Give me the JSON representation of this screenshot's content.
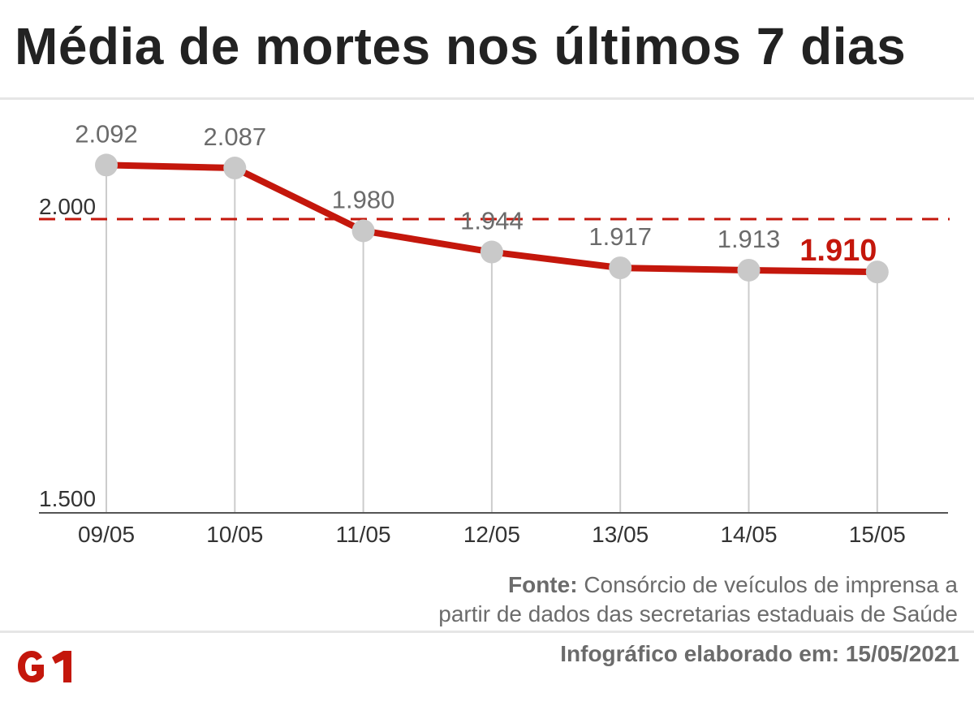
{
  "title": "Média de mortes nos últimos 7 dias",
  "source": {
    "label": "Fonte:",
    "text_line1": "Consórcio de veículos de imprensa a",
    "text_line2": "partir de dados das secretarias estaduais de Saúde"
  },
  "credit": {
    "label": "Infográfico elaborado em:",
    "date": "15/05/2021"
  },
  "logo": {
    "text": "G1",
    "color": "#c4170c"
  },
  "colors": {
    "line": "#c4170c",
    "marker": "#c9c9c9",
    "label": "#6b6b6b",
    "highlight": "#c4170c",
    "axis": "#555555",
    "drop_line": "#cccccc",
    "reference": "#c4170c"
  },
  "chart_data": {
    "type": "line",
    "categories": [
      "09/05",
      "10/05",
      "11/05",
      "12/05",
      "13/05",
      "14/05",
      "15/05"
    ],
    "values": [
      2092,
      2087,
      1980,
      1944,
      1917,
      1913,
      1910
    ],
    "data_labels": [
      "2.092",
      "2.087",
      "1.980",
      "1.944",
      "1.917",
      "1.913",
      "1.910"
    ],
    "highlight_index": 6,
    "y_ticks": [
      {
        "value": 1500,
        "label": "1.500"
      },
      {
        "value": 2000,
        "label": "2.000"
      }
    ],
    "reference_line": {
      "value": 2000,
      "style": "dashed"
    },
    "ylim": [
      1500,
      2000
    ],
    "title": "",
    "xlabel": "",
    "ylabel": "",
    "grid": false,
    "legend": "none"
  }
}
